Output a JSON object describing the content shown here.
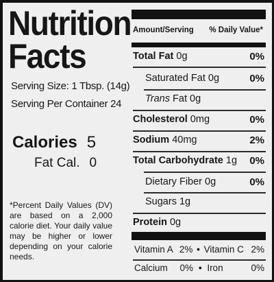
{
  "title": {
    "line1": "Nutrition",
    "line2": "Facts"
  },
  "serving_size": "Serving Size: 1 Tbsp. (14g)",
  "servings_per_container": "Serving Per Container 24",
  "calories": {
    "label": "Calories",
    "value": "5"
  },
  "fat_calories": {
    "label": "Fat Cal.",
    "value": "0"
  },
  "footnote": "*Percent Daily Values (DV) are based on a 2,000 calorie diet. Your daily value may be higher or lower depending on your calorie needs.",
  "header": {
    "amount": "Amount/Serving",
    "dv": "% Daily Value*"
  },
  "nutrients": {
    "total_fat": {
      "name": "Total Fat",
      "amount": "0g",
      "pct": "0%"
    },
    "saturated_fat": {
      "name": "Saturated Fat",
      "amount": "0g",
      "pct": "0%"
    },
    "trans_fat": {
      "name_italic": "Trans",
      "name": " Fat",
      "amount": "0g"
    },
    "cholesterol": {
      "name": "Cholesterol",
      "amount": "0mg",
      "pct": "0%"
    },
    "sodium": {
      "name": "Sodium",
      "amount": "40mg",
      "pct": "2%"
    },
    "total_carb": {
      "name": "Total Carbohydrate",
      "amount": "1g",
      "pct": "0%"
    },
    "dietary_fiber": {
      "name": "Dietary Fiber",
      "amount": "0g",
      "pct": "0%"
    },
    "sugars": {
      "name": "Sugars",
      "amount": "1g"
    },
    "protein": {
      "name": "Protein",
      "amount": "0g"
    }
  },
  "vitamins": {
    "vit_a": {
      "name": "Vitamin A",
      "pct": "2%"
    },
    "vit_c": {
      "name": "Vitamin C",
      "pct": "2%"
    },
    "calcium": {
      "name": "Calcium",
      "pct": "0%"
    },
    "iron": {
      "name": "Iron",
      "pct": "0%"
    },
    "separator": "•"
  }
}
